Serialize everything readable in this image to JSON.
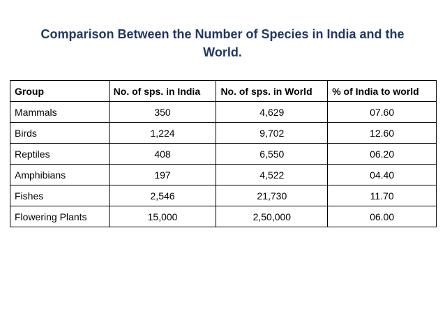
{
  "title": "Comparison Between the Number of Species in India and the World.",
  "table": {
    "headers": [
      "Group",
      "No. of sps. in India",
      "No. of sps. in World",
      "% of India to world"
    ],
    "rows": [
      [
        "Mammals",
        "350",
        "4,629",
        "07.60"
      ],
      [
        "Birds",
        "1,224",
        "9,702",
        "12.60"
      ],
      [
        "Reptiles",
        "408",
        "6,550",
        "06.20"
      ],
      [
        "Amphibians",
        "197",
        "4,522",
        "04.40"
      ],
      [
        "Fishes",
        "2,546",
        "21,730",
        "11.70"
      ],
      [
        "Flowering Plants",
        "15,000",
        "2,50,000",
        "06.00"
      ]
    ]
  },
  "colors": {
    "title": "#1f3864",
    "border": "#000000",
    "text": "#000000"
  }
}
